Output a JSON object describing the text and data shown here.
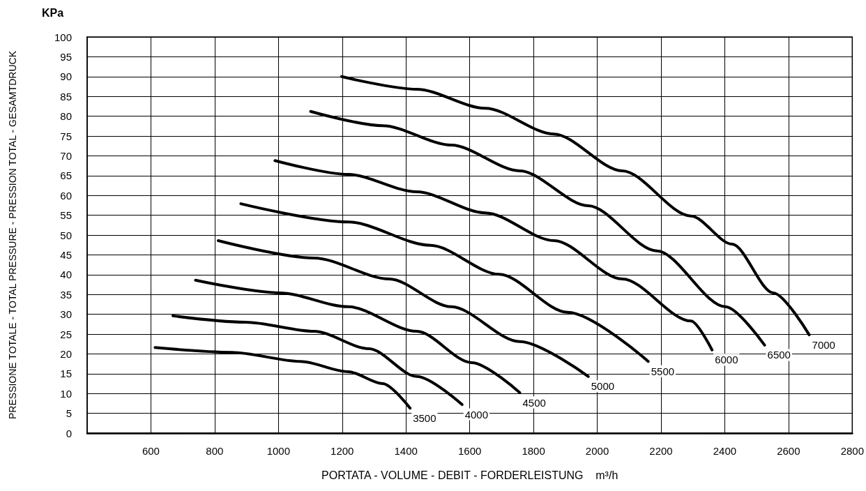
{
  "chart_data": {
    "type": "line",
    "xlabel": "PORTATA - VOLUME - DEBIT - FORDERLEISTUNG    m³/h",
    "ylabel": "PRESSIONE TOTALE - TOTAL PRESSURE - PRESSION TOTAL - GESAMTDRUCK",
    "annotations": [
      "KPa"
    ],
    "xlim": [
      400,
      2800
    ],
    "xticks": [
      600,
      800,
      1000,
      1200,
      1400,
      1600,
      1800,
      2000,
      2200,
      2400,
      2600,
      2800
    ],
    "ylim": [
      0,
      100
    ],
    "yticks": [
      0,
      5,
      10,
      15,
      20,
      25,
      30,
      35,
      40,
      45,
      50,
      55,
      60,
      65,
      70,
      75,
      80,
      85,
      90,
      95,
      100
    ],
    "grid": true,
    "marker": "none",
    "line_style": "solid",
    "legend": false,
    "series": [
      {
        "name": "3500",
        "color": "#000000",
        "x": [
          613,
          854,
          1069,
          1219,
          1327,
          1413
        ],
        "values": [
          21.6,
          20.4,
          18.1,
          15.5,
          12.5,
          6.3
        ]
      },
      {
        "name": "4000",
        "color": "#000000",
        "x": [
          669,
          897,
          1112,
          1284,
          1434,
          1576
        ],
        "values": [
          29.6,
          28,
          25.7,
          21.3,
          14.3,
          7.2
        ]
      },
      {
        "name": "4500",
        "color": "#000000",
        "x": [
          740,
          1004,
          1219,
          1434,
          1606,
          1757
        ],
        "values": [
          38.6,
          35.4,
          31.9,
          25.7,
          17.8,
          10.2
        ]
      },
      {
        "name": "5000",
        "color": "#000000",
        "x": [
          811,
          1112,
          1348,
          1542,
          1757,
          1972
        ],
        "values": [
          48.6,
          44.2,
          38.9,
          31.9,
          23.1,
          14.3
        ]
      },
      {
        "name": "5500",
        "color": "#000000",
        "x": [
          882,
          1219,
          1477,
          1692,
          1907,
          2160
        ],
        "values": [
          57.9,
          53.3,
          47.4,
          40.1,
          30.5,
          18.1
        ]
      },
      {
        "name": "6000",
        "color": "#000000",
        "x": [
          989,
          1219,
          1434,
          1649,
          1864,
          2079,
          2294,
          2360
        ],
        "values": [
          68.8,
          65.3,
          60.9,
          55.6,
          48.6,
          38.9,
          28.3,
          21
        ]
      },
      {
        "name": "6500",
        "color": "#000000",
        "x": [
          1101,
          1327,
          1542,
          1757,
          1972,
          2187,
          2402,
          2525
        ],
        "values": [
          81.2,
          77.6,
          72.7,
          66.2,
          57.4,
          46,
          31.9,
          22.2
        ]
      },
      {
        "name": "7000",
        "color": "#000000",
        "x": [
          1198,
          1434,
          1649,
          1864,
          2079,
          2294,
          2423,
          2552,
          2665
        ],
        "values": [
          90,
          86.8,
          82,
          75.5,
          66.2,
          54.8,
          47.7,
          35.4,
          24.8
        ]
      }
    ]
  }
}
